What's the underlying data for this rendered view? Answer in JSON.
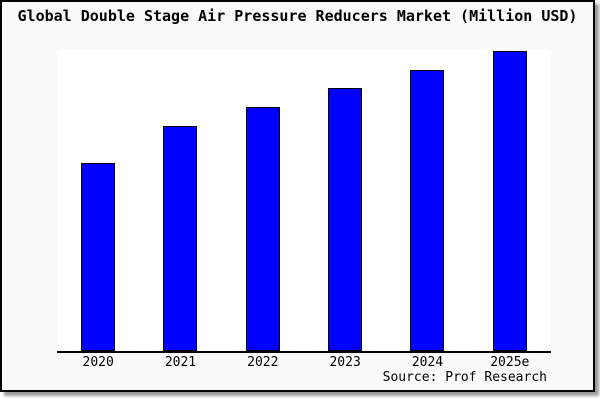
{
  "window": {
    "canvas_background": "#fafafa",
    "plot_background": "#ffffff",
    "frame_border_color": "#000000",
    "shadow_color": "#9a9a9a"
  },
  "chart_data": {
    "type": "bar",
    "title": "Global Double Stage Air Pressure Reducers Market (Million USD)",
    "categories": [
      "2020",
      "2021",
      "2022",
      "2023",
      "2024",
      "2025e"
    ],
    "values": [
      62.8,
      75.1,
      81.4,
      87.7,
      93.7,
      100
    ],
    "value_units": "relative index (no y-axis scale shown; normalized to 2025e = 100)",
    "xlabel": "",
    "ylabel": "",
    "ylim": [
      0,
      100.7
    ],
    "grid": false,
    "legend": null,
    "bar_color": "#0000fe",
    "bar_border_color": "#000000",
    "axis_line_color": "#000000",
    "source_note": "Source: Prof Research"
  }
}
